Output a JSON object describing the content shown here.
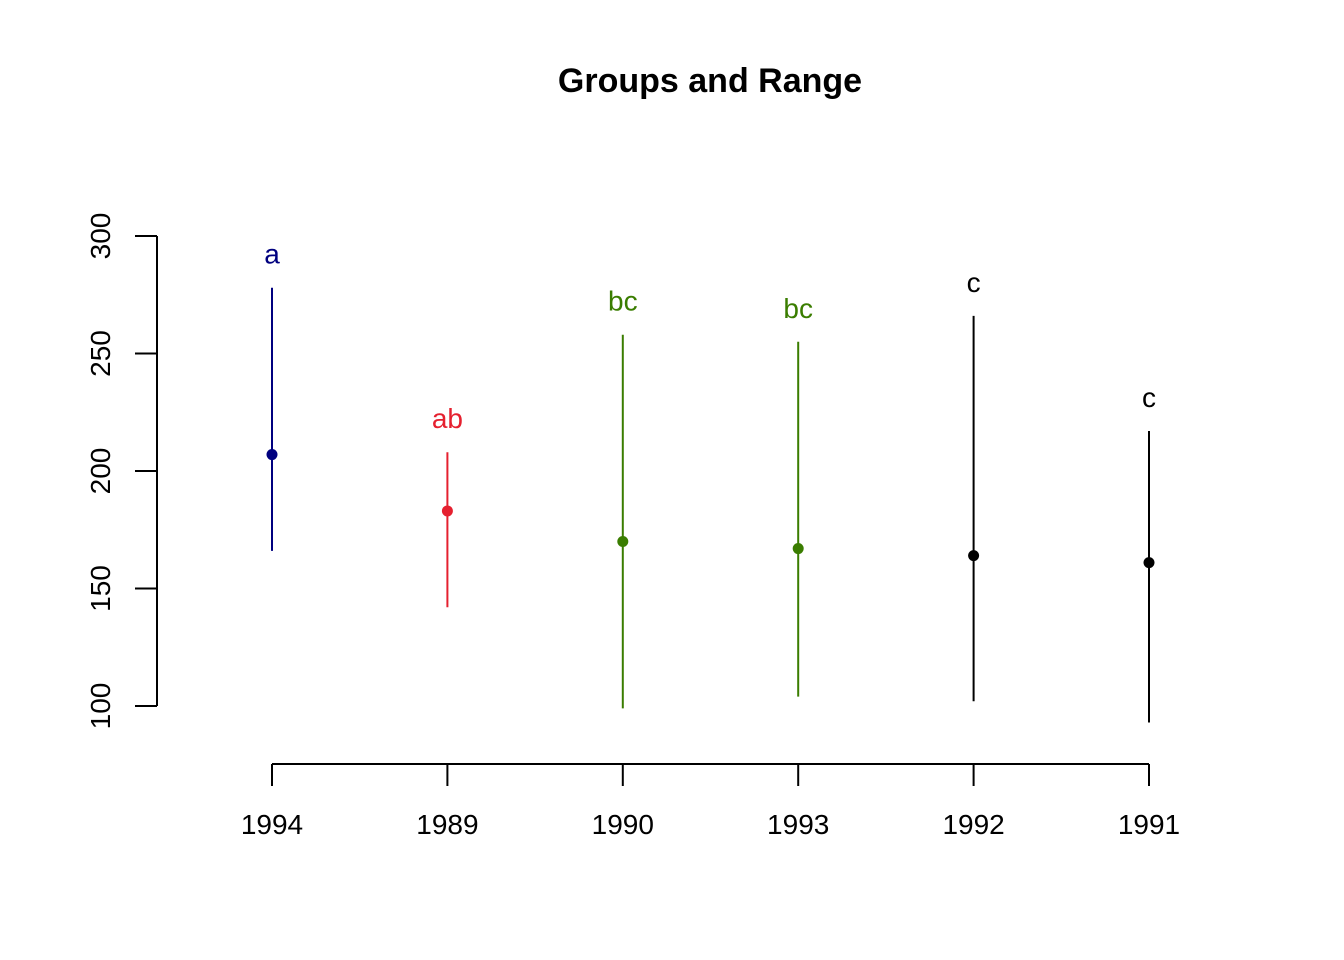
{
  "chart_data": {
    "type": "scatter",
    "title": "Groups and Range",
    "xlabel": "",
    "ylabel": "",
    "ylim": [
      100,
      300
    ],
    "yticks": [
      "100",
      "150",
      "200",
      "250",
      "300"
    ],
    "grid": false,
    "legend": "none",
    "categories": [
      "1994",
      "1989",
      "1990",
      "1993",
      "1992",
      "1991"
    ],
    "points": [
      {
        "category": "1994",
        "mean": 207,
        "min": 166,
        "max": 278,
        "group": "a",
        "color": "#00007F"
      },
      {
        "category": "1989",
        "mean": 183,
        "min": 142,
        "max": 208,
        "group": "ab",
        "color": "#E5202F"
      },
      {
        "category": "1990",
        "mean": 170,
        "min": 99,
        "max": 258,
        "group": "bc",
        "color": "#3A7D00"
      },
      {
        "category": "1993",
        "mean": 167,
        "min": 104,
        "max": 255,
        "group": "bc",
        "color": "#3A7D00"
      },
      {
        "category": "1992",
        "mean": 164,
        "min": 102,
        "max": 266,
        "group": "c",
        "color": "#000000"
      },
      {
        "category": "1991",
        "mean": 161,
        "min": 93,
        "max": 217,
        "group": "c",
        "color": "#000000"
      }
    ]
  }
}
